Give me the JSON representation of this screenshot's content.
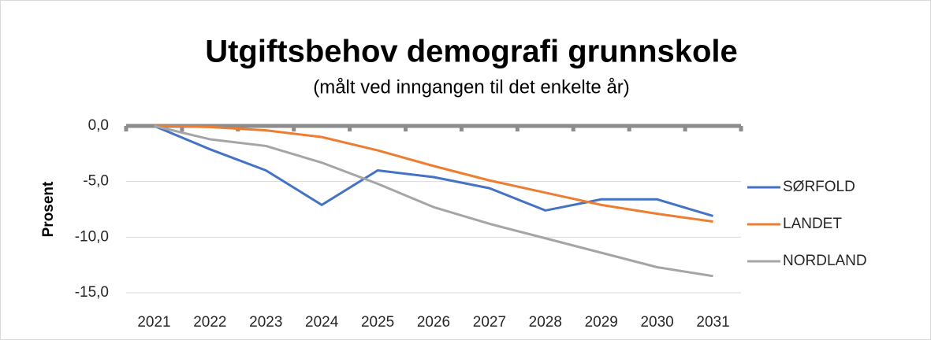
{
  "chart_data": {
    "type": "line",
    "title": "Utgiftsbehov demografi grunnskole",
    "subtitle": "(målt ved inngangen til det enkelte år)",
    "y_label": "Prosent",
    "categories": [
      "2021",
      "2022",
      "2023",
      "2024",
      "2025",
      "2026",
      "2027",
      "2028",
      "2029",
      "2030",
      "2031"
    ],
    "series": [
      {
        "name": "SØRFOLD",
        "color": "#4472c4",
        "values": [
          0,
          -2.1,
          -4.0,
          -7.1,
          -4.0,
          -4.6,
          -5.6,
          -7.6,
          -6.6,
          -6.6,
          -8.1
        ]
      },
      {
        "name": "LANDET",
        "color": "#ed7d31",
        "values": [
          0,
          -0.1,
          -0.4,
          -1.0,
          -2.2,
          -3.6,
          -4.9,
          -6.0,
          -7.1,
          -7.9,
          -8.6
        ]
      },
      {
        "name": "NORDLAND",
        "color": "#a5a5a5",
        "values": [
          0,
          -1.2,
          -1.8,
          -3.3,
          -5.2,
          -7.3,
          -8.8,
          -10.1,
          -11.4,
          -12.7,
          -13.5
        ]
      }
    ],
    "ylim": [
      -15,
      0
    ],
    "yticks": [
      {
        "value": 0,
        "label": "0,0"
      },
      {
        "value": -5,
        "label": "-5,0"
      },
      {
        "value": -10,
        "label": "-10,0"
      },
      {
        "value": -15,
        "label": "-15,0"
      }
    ],
    "grid": true,
    "legend": "right"
  }
}
